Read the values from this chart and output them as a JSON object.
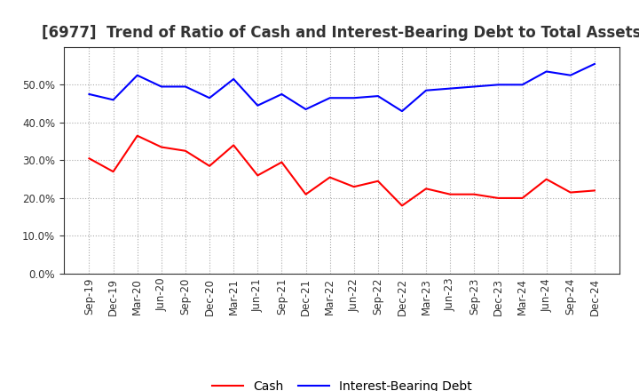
{
  "title": "[6977]  Trend of Ratio of Cash and Interest-Bearing Debt to Total Assets",
  "x_labels": [
    "Sep-19",
    "Dec-19",
    "Mar-20",
    "Jun-20",
    "Sep-20",
    "Dec-20",
    "Mar-21",
    "Jun-21",
    "Sep-21",
    "Dec-21",
    "Mar-22",
    "Jun-22",
    "Sep-22",
    "Dec-22",
    "Mar-23",
    "Jun-23",
    "Sep-23",
    "Dec-23",
    "Mar-24",
    "Jun-24",
    "Sep-24",
    "Dec-24"
  ],
  "cash": [
    30.5,
    27.0,
    36.5,
    33.5,
    32.5,
    28.5,
    34.0,
    26.0,
    29.5,
    21.0,
    25.5,
    23.0,
    24.5,
    18.0,
    22.5,
    21.0,
    21.0,
    20.0,
    20.0,
    25.0,
    21.5,
    22.0
  ],
  "interest_bearing_debt": [
    47.5,
    46.0,
    52.5,
    49.5,
    49.5,
    46.5,
    51.5,
    44.5,
    47.5,
    43.5,
    46.5,
    46.5,
    47.0,
    43.0,
    48.5,
    49.0,
    49.5,
    50.0,
    50.0,
    53.5,
    52.5,
    55.5
  ],
  "cash_color": "#ff0000",
  "debt_color": "#0000ff",
  "background_color": "#ffffff",
  "plot_bg_color": "#ffffff",
  "grid_color": "#aaaaaa",
  "ylim": [
    0,
    60
  ],
  "yticks": [
    0,
    10,
    20,
    30,
    40,
    50
  ],
  "legend_cash": "Cash",
  "legend_debt": "Interest-Bearing Debt",
  "title_fontsize": 12,
  "axis_fontsize": 8.5,
  "legend_fontsize": 10,
  "title_color": "#333333"
}
